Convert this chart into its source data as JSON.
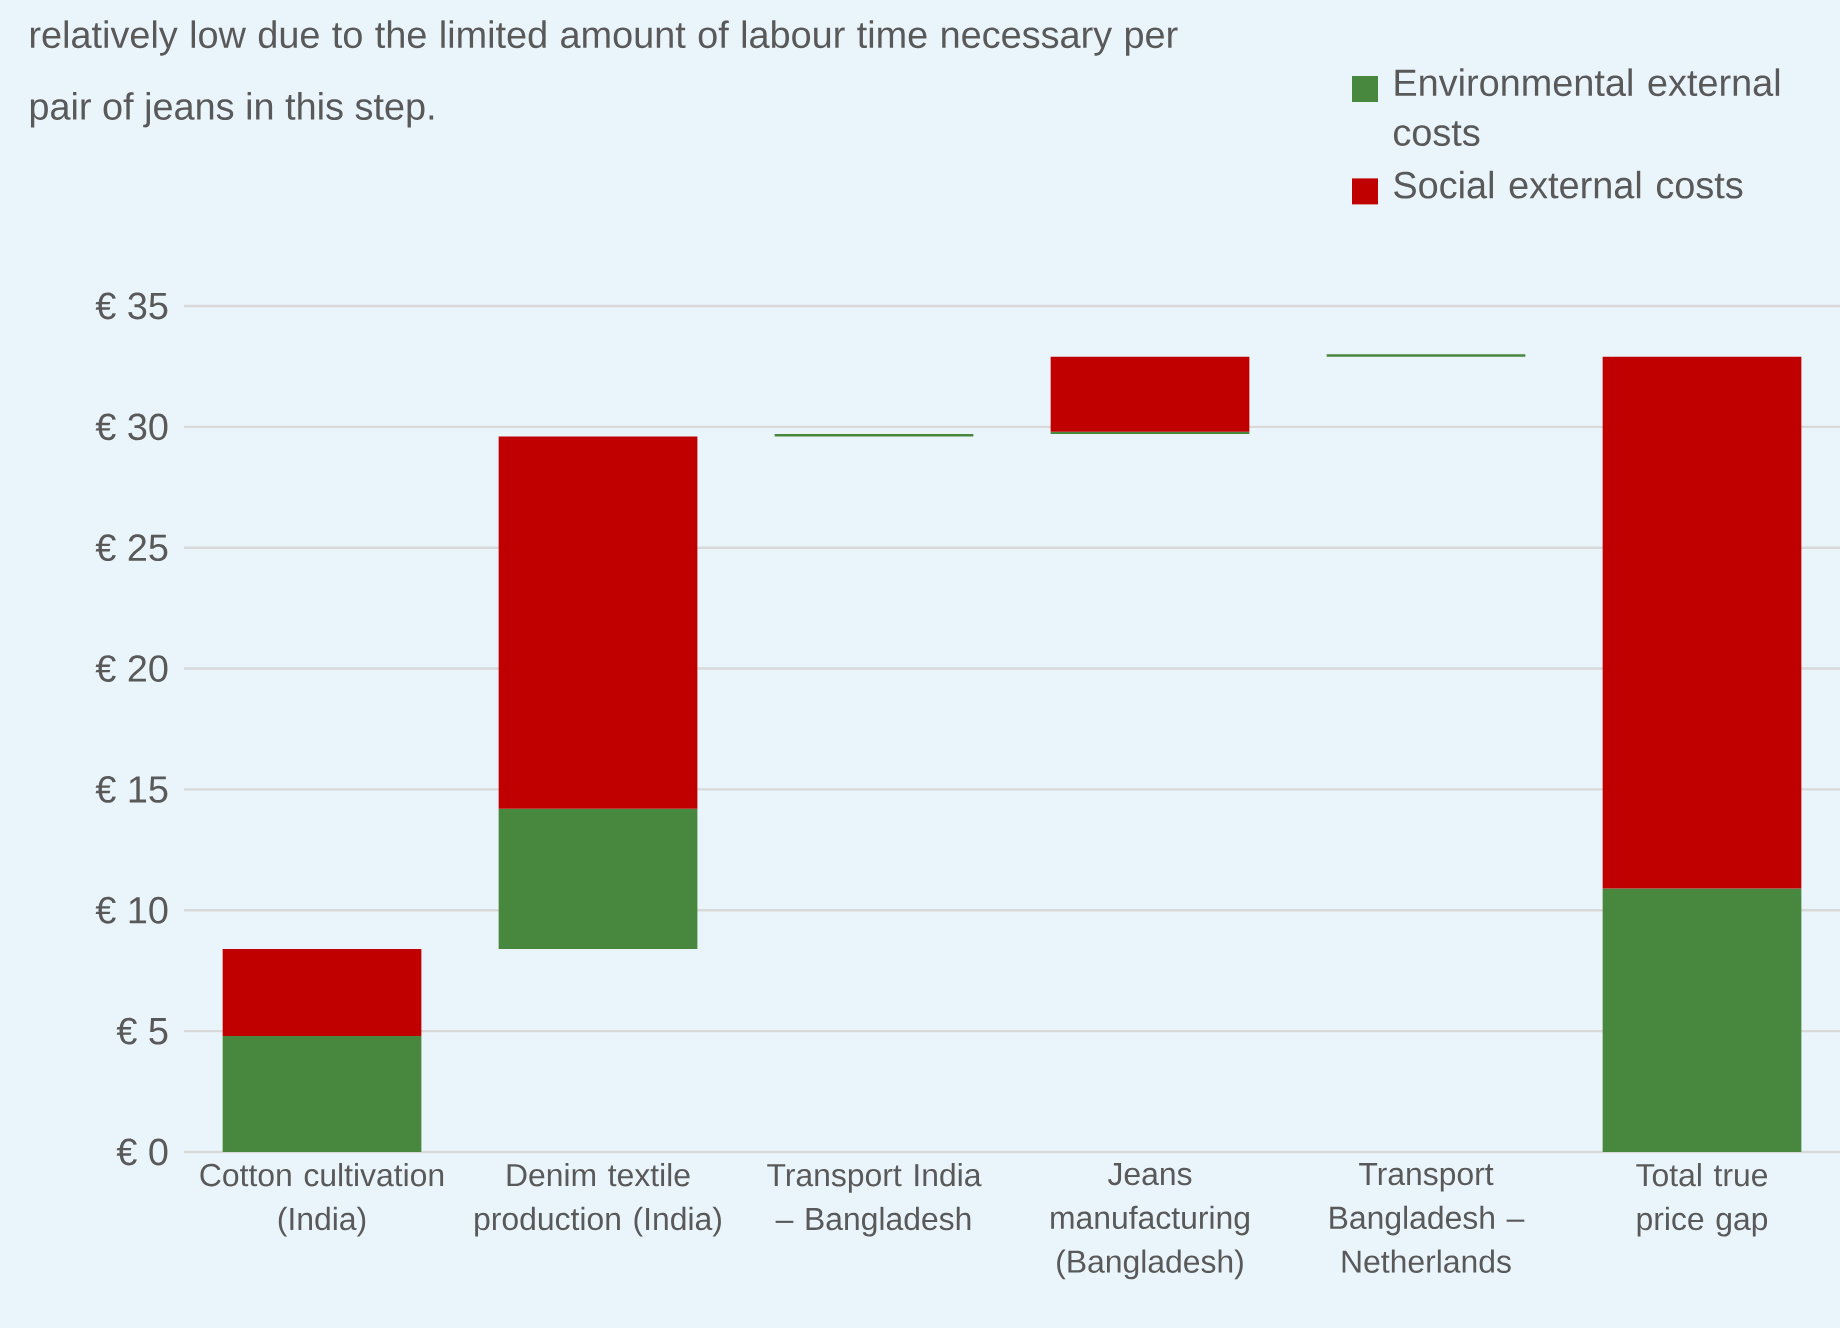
{
  "chart_data": {
    "type": "bar",
    "stacked": true,
    "annotations": [
      "relatively low due to the limited amount of labour time necessary per pair of jeans in this step."
    ],
    "categories": [
      "Cotton cultivation (India)",
      "Denim textile production (India)",
      "Transport India – Bangladesh",
      "Jeans manufacturing (Bangladesh)",
      "Transport Bangladesh – Netherlands",
      "Total true price gap"
    ],
    "series": [
      {
        "name": "Environmental external costs",
        "color": "#48873e",
        "base": [
          0,
          8.4,
          29.6,
          29.7,
          32.9,
          0
        ],
        "values": [
          4.8,
          5.8,
          0.1,
          0.1,
          0.1,
          10.9
        ]
      },
      {
        "name": "Social external costs",
        "color": "#c00000",
        "base": [
          4.8,
          14.2,
          null,
          29.8,
          null,
          10.9
        ],
        "values": [
          3.6,
          15.4,
          null,
          3.1,
          null,
          22.0
        ]
      }
    ],
    "ylim": [
      0,
      35
    ],
    "yticks": [
      {
        "value": 0,
        "label": "€ 0"
      },
      {
        "value": 5,
        "label": "€ 5"
      },
      {
        "value": 10,
        "label": "€ 10"
      },
      {
        "value": 15,
        "label": "€ 15"
      },
      {
        "value": 20,
        "label": "€ 20"
      },
      {
        "value": 25,
        "label": "€ 25"
      },
      {
        "value": 30,
        "label": "€ 30"
      },
      {
        "value": 35,
        "label": "€ 35"
      }
    ],
    "grid": "y",
    "legend": "top right"
  }
}
